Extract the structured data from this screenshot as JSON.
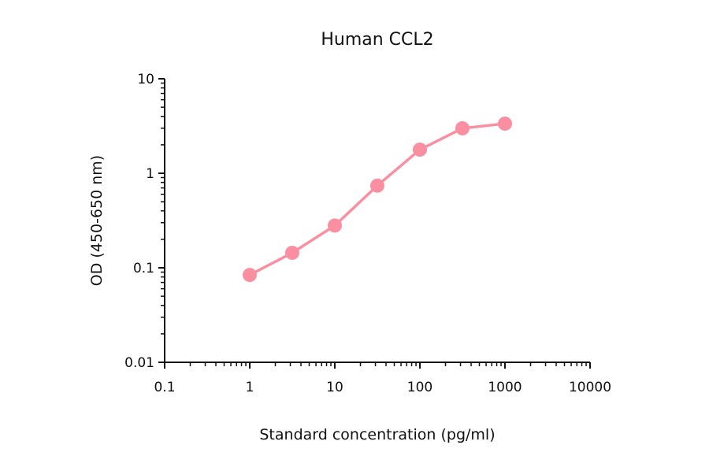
{
  "chart_data": {
    "type": "line",
    "title": "Human CCL2",
    "xlabel": "Standard concentration (pg/ml)",
    "ylabel": "OD (450-650 nm)",
    "x_scale": "log",
    "y_scale": "log",
    "xlim": [
      0.1,
      10000
    ],
    "ylim": [
      0.01,
      10
    ],
    "x_ticks": [
      "0.1",
      "1",
      "10",
      "100",
      "1000",
      "10000"
    ],
    "y_ticks": [
      "0.01",
      "0.1",
      "1",
      "10"
    ],
    "grid": false,
    "legend": "none",
    "color": "#f98fa0",
    "x": [
      1,
      3.16,
      10,
      31.6,
      100,
      316,
      1000
    ],
    "y": [
      0.084,
      0.144,
      0.28,
      0.74,
      1.78,
      2.99,
      3.35
    ]
  }
}
